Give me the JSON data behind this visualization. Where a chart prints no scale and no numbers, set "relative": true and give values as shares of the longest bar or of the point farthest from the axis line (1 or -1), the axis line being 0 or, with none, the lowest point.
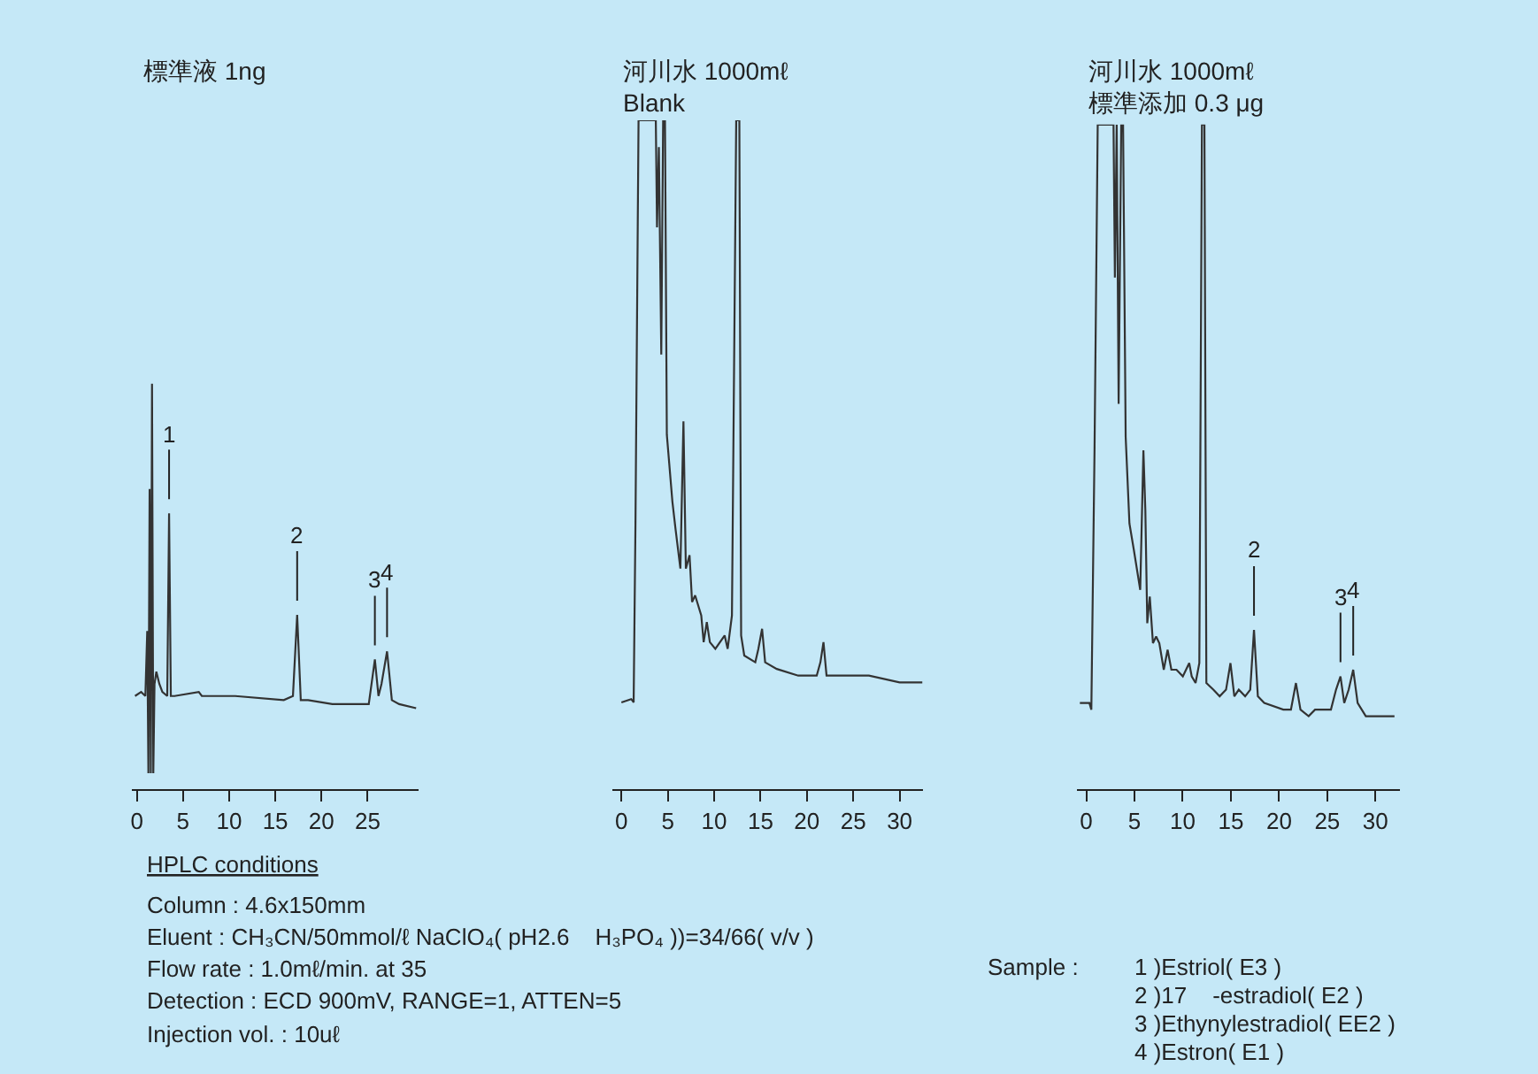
{
  "chart_data": [
    {
      "type": "line",
      "relative": true,
      "title": "標準液 1ng",
      "xlim": [
        -0.5,
        30.5
      ],
      "xticks": [
        0,
        5,
        10,
        15,
        20,
        25
      ],
      "grid": false,
      "marker": "none",
      "line_style": "solid",
      "tick_labels": "x",
      "series": [
        {
          "color": "#333333",
          "x": [
            -0.2,
            0.46,
            0.92,
            1.12,
            1.25,
            1.38,
            1.51,
            1.64,
            1.78,
            1.91,
            2.11,
            2.43,
            2.76,
            3.29,
            3.49,
            3.68,
            4.08,
            6.71,
            7.04,
            10.66,
            15.92,
            16.91,
            17.37,
            17.76,
            18.55,
            21.18,
            23.82,
            25.13,
            25.79,
            26.18,
            26.51,
            27.11,
            27.63,
            28.42,
            30.26
          ],
          "values": [
            0.23,
            0.24,
            0.23,
            0.39,
            0.04,
            0.74,
            0.04,
            1.0,
            0.04,
            0.26,
            0.29,
            0.26,
            0.24,
            0.23,
            0.68,
            0.23,
            0.23,
            0.24,
            0.23,
            0.23,
            0.22,
            0.23,
            0.43,
            0.22,
            0.22,
            0.21,
            0.21,
            0.21,
            0.32,
            0.23,
            0.26,
            0.34,
            0.22,
            0.21,
            0.2
          ]
        }
      ],
      "annotations": [
        {
          "text": "1",
          "x": 3.49,
          "y": 0.68
        },
        {
          "text": "2",
          "x": 17.37,
          "y": 0.43
        },
        {
          "text": "3",
          "x": 25.79,
          "y": 0.32
        },
        {
          "text": "4",
          "x": 27.11,
          "y": 0.34
        }
      ]
    },
    {
      "type": "line",
      "relative": true,
      "title": "河川水 1000mℓ",
      "subtitle": "Blank",
      "xlim": [
        -1,
        32.5
      ],
      "xticks": [
        0,
        5,
        10,
        15,
        20,
        25,
        30
      ],
      "grid": false,
      "marker": "none",
      "line_style": "solid",
      "tick_labels": "x",
      "series": [
        {
          "color": "#333333",
          "x": [
            0,
            1.06,
            1.32,
            1.52,
            1.85,
            3.71,
            3.84,
            4.04,
            4.3,
            4.5,
            4.7,
            4.9,
            5.5,
            5.83,
            6.36,
            6.69,
            6.95,
            7.35,
            7.62,
            7.95,
            8.61,
            8.87,
            9.21,
            9.54,
            10.13,
            11.13,
            11.46,
            11.92,
            12.38,
            12.72,
            12.91,
            13.25,
            14.44,
            14.77,
            15.17,
            15.5,
            16.75,
            19.07,
            21.06,
            21.46,
            21.79,
            22.12,
            23.71,
            24.04,
            24.37,
            26.69,
            30.0,
            32.45
          ],
          "values": [
            0.13,
            0.135,
            0.13,
            0.4,
            1.0,
            1.0,
            0.84,
            0.96,
            0.65,
            1.0,
            1.0,
            0.53,
            0.43,
            0.39,
            0.33,
            0.55,
            0.33,
            0.35,
            0.28,
            0.29,
            0.26,
            0.22,
            0.25,
            0.22,
            0.21,
            0.23,
            0.21,
            0.26,
            1.0,
            1.0,
            0.23,
            0.2,
            0.19,
            0.21,
            0.24,
            0.19,
            0.18,
            0.17,
            0.17,
            0.19,
            0.22,
            0.17,
            0.17,
            0.17,
            0.17,
            0.17,
            0.16,
            0.16
          ]
        }
      ]
    },
    {
      "type": "line",
      "relative": true,
      "title": "河川水 1000mℓ",
      "subtitle": "標準添加 0.3 μg",
      "xlim": [
        -1,
        32.5
      ],
      "xticks": [
        0,
        5,
        10,
        15,
        20,
        25,
        30
      ],
      "grid": false,
      "marker": "none",
      "line_style": "solid",
      "tick_labels": "x",
      "series": [
        {
          "color": "#333333",
          "x": [
            -0.66,
            0.33,
            0.53,
            0.86,
            1.19,
            2.83,
            2.97,
            3.16,
            3.36,
            3.63,
            3.82,
            4.09,
            4.48,
            4.94,
            5.6,
            5.93,
            6.13,
            6.33,
            6.59,
            6.92,
            7.25,
            7.58,
            8.04,
            8.44,
            8.83,
            9.36,
            10.02,
            10.68,
            10.94,
            11.34,
            11.73,
            12.0,
            12.26,
            12.46,
            13.18,
            13.84,
            14.5,
            14.96,
            15.36,
            15.82,
            16.48,
            17.01,
            17.4,
            17.8,
            18.46,
            20.44,
            21.23,
            21.75,
            22.22,
            23.07,
            23.73,
            24.39,
            25.38,
            25.91,
            26.37,
            26.76,
            27.22,
            27.69,
            28.15,
            29.0,
            30.32,
            31.97
          ],
          "values": [
            0.13,
            0.13,
            0.12,
            0.51,
            1.0,
            1.0,
            0.77,
            1.0,
            0.58,
            1.0,
            1.0,
            0.53,
            0.4,
            0.36,
            0.3,
            0.51,
            0.42,
            0.25,
            0.29,
            0.22,
            0.23,
            0.22,
            0.18,
            0.21,
            0.18,
            0.18,
            0.17,
            0.19,
            0.17,
            0.16,
            0.19,
            1.0,
            1.0,
            0.16,
            0.15,
            0.14,
            0.15,
            0.19,
            0.14,
            0.15,
            0.14,
            0.15,
            0.24,
            0.14,
            0.13,
            0.12,
            0.12,
            0.16,
            0.12,
            0.11,
            0.12,
            0.12,
            0.12,
            0.15,
            0.17,
            0.13,
            0.15,
            0.18,
            0.13,
            0.11,
            0.11,
            0.11
          ]
        }
      ],
      "annotations": [
        {
          "text": "2",
          "x": 17.4,
          "y": 0.24
        },
        {
          "text": "3",
          "x": 26.37,
          "y": 0.17
        },
        {
          "text": "4",
          "x": 27.69,
          "y": 0.18
        }
      ]
    },
    {
      "type": "other",
      "annotations": [
        "HPLC conditions",
        "Column : 4.6x150mm",
        "Eluent : CH₃CN/50mmol/ℓ NaClO₄( pH2.6    H₃PO₄ ))=34/66( v/v )",
        "Flow rate : 1.0mℓ/min. at 35",
        "Detection : ECD 900mV, RANGE=1, ATTEN=5",
        "Injection vol. : 10uℓ",
        "Sample :",
        "1 )Estriol( E3 )",
        "2 )17    -estradiol( E2 )",
        "3 )Ethynylestradiol( EE2 )",
        "4 )Estron( E1 )"
      ]
    }
  ]
}
